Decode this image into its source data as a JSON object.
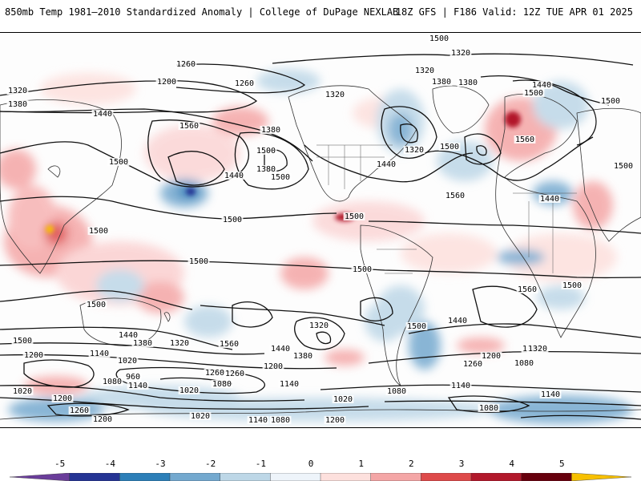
{
  "header": {
    "title": "850mb Temp 1981–2010 Standardized Anomaly | College of DuPage NEXLAB",
    "run_info": "18Z GFS | F186 Valid: 12Z TUE APR 01 2025"
  },
  "colorbar": {
    "ticks": [
      "-5",
      "-4",
      "-3",
      "-2",
      "-1",
      "0",
      "1",
      "2",
      "3",
      "4",
      "5"
    ],
    "colors": [
      "#6a3d9a",
      "#253494",
      "#2c7fb8",
      "#74a9cf",
      "#bdd7e7",
      "#eef4fa",
      "#fde0dd",
      "#f4a6a6",
      "#de4a4a",
      "#b2182b",
      "#67000d",
      "#f7c000"
    ]
  },
  "contour_labels": [
    {
      "text": "1320"
    },
    {
      "text": "1260"
    },
    {
      "text": "1200"
    },
    {
      "text": "1260"
    },
    {
      "text": "1320"
    },
    {
      "text": "1380"
    },
    {
      "text": "1320"
    },
    {
      "text": "1320"
    },
    {
      "text": "1380"
    },
    {
      "text": "1440"
    },
    {
      "text": "1500"
    },
    {
      "text": "1380"
    },
    {
      "text": "1440"
    },
    {
      "text": "1560"
    },
    {
      "text": "1380"
    },
    {
      "text": "1500"
    },
    {
      "text": "1380"
    },
    {
      "text": "1440"
    },
    {
      "text": "1500"
    },
    {
      "text": "1320"
    },
    {
      "text": "1500"
    },
    {
      "text": "1440"
    },
    {
      "text": "1560"
    },
    {
      "text": "1560"
    },
    {
      "text": "1500"
    },
    {
      "text": "1500"
    },
    {
      "text": "1500"
    },
    {
      "text": "1500"
    },
    {
      "text": "1440"
    },
    {
      "text": "1500"
    },
    {
      "text": "1500"
    },
    {
      "text": "1500"
    },
    {
      "text": "1500"
    },
    {
      "text": "1500"
    },
    {
      "text": "1560"
    },
    {
      "text": "1500"
    },
    {
      "text": "1500"
    },
    {
      "text": "1500"
    },
    {
      "text": "1440"
    },
    {
      "text": "1380"
    },
    {
      "text": "1320"
    },
    {
      "text": "1560"
    },
    {
      "text": "1320"
    },
    {
      "text": "1500"
    },
    {
      "text": "1440"
    },
    {
      "text": "1380"
    },
    {
      "text": "1440"
    },
    {
      "text": "1380"
    },
    {
      "text": "1320"
    },
    {
      "text": "1260"
    },
    {
      "text": "1200"
    },
    {
      "text": "1080"
    },
    {
      "text": "1260"
    },
    {
      "text": "1200"
    },
    {
      "text": "1140"
    },
    {
      "text": "1020"
    },
    {
      "text": "960"
    },
    {
      "text": "1080"
    },
    {
      "text": "1140"
    },
    {
      "text": "1020"
    },
    {
      "text": "1260"
    },
    {
      "text": "1200"
    },
    {
      "text": "1080"
    },
    {
      "text": "1140"
    },
    {
      "text": "1020"
    },
    {
      "text": "1080"
    },
    {
      "text": "1140"
    },
    {
      "text": "1020"
    },
    {
      "text": "1200"
    },
    {
      "text": "1260"
    },
    {
      "text": "1200"
    },
    {
      "text": "1020"
    },
    {
      "text": "1140"
    },
    {
      "text": "1080"
    },
    {
      "text": "1200"
    },
    {
      "text": "1080"
    },
    {
      "text": "1140"
    }
  ]
}
